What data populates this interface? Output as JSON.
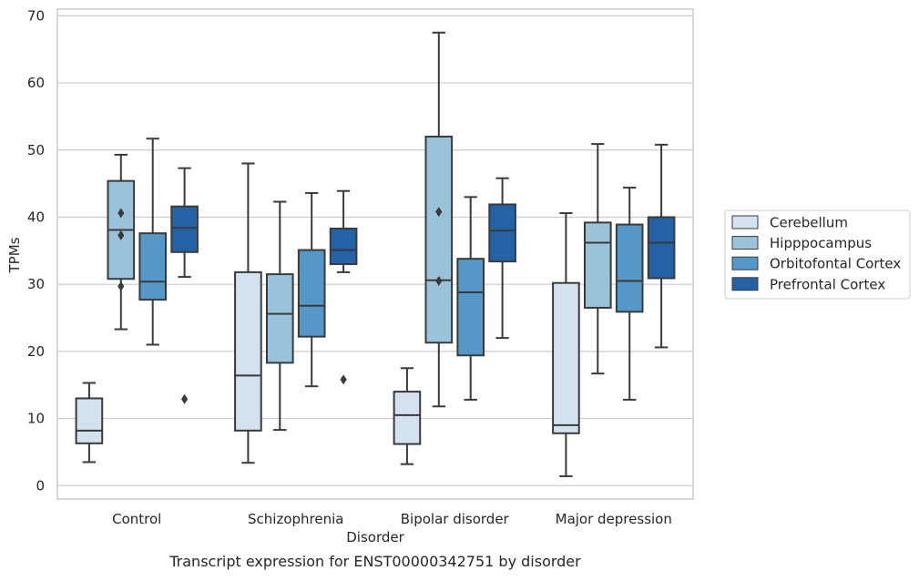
{
  "chart_data": {
    "type": "box",
    "caption": "Transcript expression for ENST00000342751 by disorder",
    "xlabel": "Disorder",
    "ylabel": "TPMs",
    "ylim": [
      -2,
      71
    ],
    "yticks": [
      0,
      10,
      20,
      30,
      40,
      50,
      60,
      70
    ],
    "grid": "horizontal",
    "legend_position": "right",
    "categories": [
      "Control",
      "Schizophrenia",
      "Bipolar disorder",
      "Major depression"
    ],
    "series": [
      {
        "name": "Cerebellum",
        "color": "#d4e2f0",
        "boxes": [
          {
            "whisker_low": 3.5,
            "q1": 6.3,
            "median": 8.2,
            "q3": 13.0,
            "whisker_high": 15.3,
            "outliers": []
          },
          {
            "whisker_low": 3.4,
            "q1": 8.2,
            "median": 16.4,
            "q3": 31.8,
            "whisker_high": 48.0,
            "outliers": []
          },
          {
            "whisker_low": 3.2,
            "q1": 6.2,
            "median": 10.5,
            "q3": 14.0,
            "whisker_high": 17.5,
            "outliers": []
          },
          {
            "whisker_low": 1.4,
            "q1": 7.8,
            "median": 9.0,
            "q3": 30.2,
            "whisker_high": 40.6,
            "outliers": []
          }
        ]
      },
      {
        "name": "Hipppocampus",
        "color": "#9ac3db",
        "boxes": [
          {
            "whisker_low": 23.3,
            "q1": 30.8,
            "median": 38.1,
            "q3": 45.4,
            "whisker_high": 49.3,
            "outliers": [
              29.7,
              37.3,
              40.6
            ]
          },
          {
            "whisker_low": 8.3,
            "q1": 18.3,
            "median": 25.6,
            "q3": 31.5,
            "whisker_high": 42.3,
            "outliers": []
          },
          {
            "whisker_low": 11.8,
            "q1": 21.3,
            "median": 30.6,
            "q3": 52.0,
            "whisker_high": 67.5,
            "outliers": [
              30.5,
              40.8
            ]
          },
          {
            "whisker_low": 16.7,
            "q1": 26.5,
            "median": 36.2,
            "q3": 39.2,
            "whisker_high": 50.9,
            "outliers": []
          }
        ]
      },
      {
        "name": "Orbitofontal Cortex",
        "color": "#5597c6",
        "boxes": [
          {
            "whisker_low": 21.0,
            "q1": 27.7,
            "median": 30.4,
            "q3": 37.6,
            "whisker_high": 51.7,
            "outliers": []
          },
          {
            "whisker_low": 14.8,
            "q1": 22.2,
            "median": 26.8,
            "q3": 35.1,
            "whisker_high": 43.6,
            "outliers": []
          },
          {
            "whisker_low": 12.8,
            "q1": 19.4,
            "median": 28.8,
            "q3": 33.8,
            "whisker_high": 43.0,
            "outliers": []
          },
          {
            "whisker_low": 12.8,
            "q1": 25.9,
            "median": 30.5,
            "q3": 38.9,
            "whisker_high": 44.4,
            "outliers": []
          }
        ]
      },
      {
        "name": "Prefrontal Cortex",
        "color": "#2462a5",
        "boxes": [
          {
            "whisker_low": 31.1,
            "q1": 34.8,
            "median": 38.4,
            "q3": 41.6,
            "whisker_high": 47.3,
            "outliers": [
              12.9
            ]
          },
          {
            "whisker_low": 31.8,
            "q1": 33.0,
            "median": 35.1,
            "q3": 38.3,
            "whisker_high": 43.9,
            "outliers": [
              15.8
            ]
          },
          {
            "whisker_low": 22.0,
            "q1": 33.4,
            "median": 38.0,
            "q3": 41.9,
            "whisker_high": 45.8,
            "outliers": []
          },
          {
            "whisker_low": 20.6,
            "q1": 30.9,
            "median": 36.2,
            "q3": 40.0,
            "whisker_high": 50.8,
            "outliers": []
          }
        ]
      }
    ]
  }
}
